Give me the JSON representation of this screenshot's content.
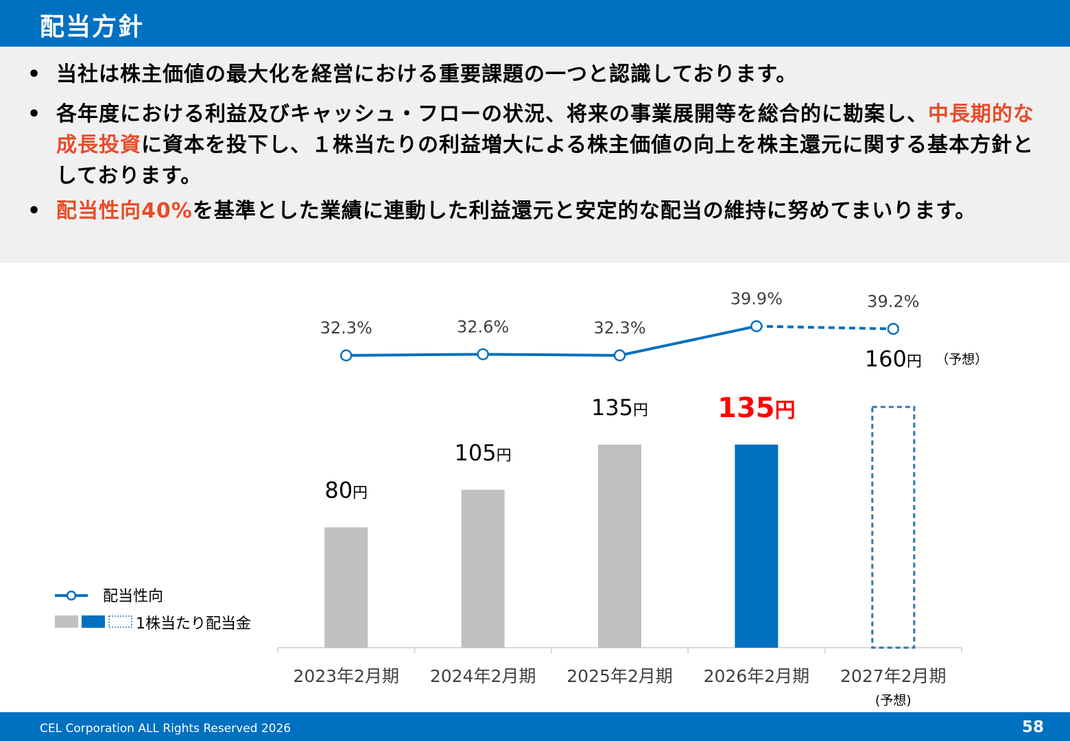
{
  "header": {
    "title": "配当方針"
  },
  "bullets": [
    {
      "parts": [
        {
          "text": "当社は株主価値の最大化を経営における重要課題の一つと認識しております。",
          "highlight": false
        }
      ]
    },
    {
      "parts": [
        {
          "text": "各年度における利益及びキャッシュ・フローの状況、将来の事業展開等を総合的に勘案し、",
          "highlight": false
        },
        {
          "text": "中長期的な成長投資",
          "highlight": true
        },
        {
          "text": "に資本を投下し、１株当たりの利益増大による株主価値の向上を株主還元に関する基本方針としております。",
          "highlight": false
        }
      ]
    },
    {
      "parts": [
        {
          "text": "配当性向40%",
          "highlight": true
        },
        {
          "text": "を基準とした業績に連動した利益還元と安定的な配当の維持に努めてまいります。",
          "highlight": false
        }
      ]
    }
  ],
  "chart_data": {
    "type": "bar",
    "categories": [
      "2023年2月期",
      "2024年2月期",
      "2025年2月期",
      "2026年2月期",
      "2027年2月期"
    ],
    "category_notes": [
      "",
      "",
      "",
      "",
      "(予想)"
    ],
    "series": [
      {
        "name": "1株当たり配当金",
        "type": "bar",
        "values": [
          80,
          105,
          135,
          135,
          160
        ],
        "unit": "円",
        "styles": [
          "past",
          "past",
          "past",
          "current",
          "forecast"
        ]
      },
      {
        "name": "配当性向",
        "type": "line",
        "values": [
          32.3,
          32.6,
          32.3,
          39.9,
          39.2
        ],
        "unit": "%",
        "forecast_from_index": 3
      }
    ],
    "forecast_label": "（予想）",
    "legend": {
      "position": "bottom-left",
      "items": [
        "配当性向",
        "1株当たり配当金"
      ]
    },
    "colors": {
      "past": "#c0c0c0",
      "current": "#0070c0",
      "forecast": "#2e75b6",
      "line": "#0070c0",
      "highlight_label": "#ff0000",
      "text": "#404040"
    },
    "grid": false,
    "ylim_bar": [
      0,
      180
    ]
  },
  "footer": {
    "copyright": "CEL Corporation ALL Rights Reserved 2026",
    "page": "58"
  }
}
